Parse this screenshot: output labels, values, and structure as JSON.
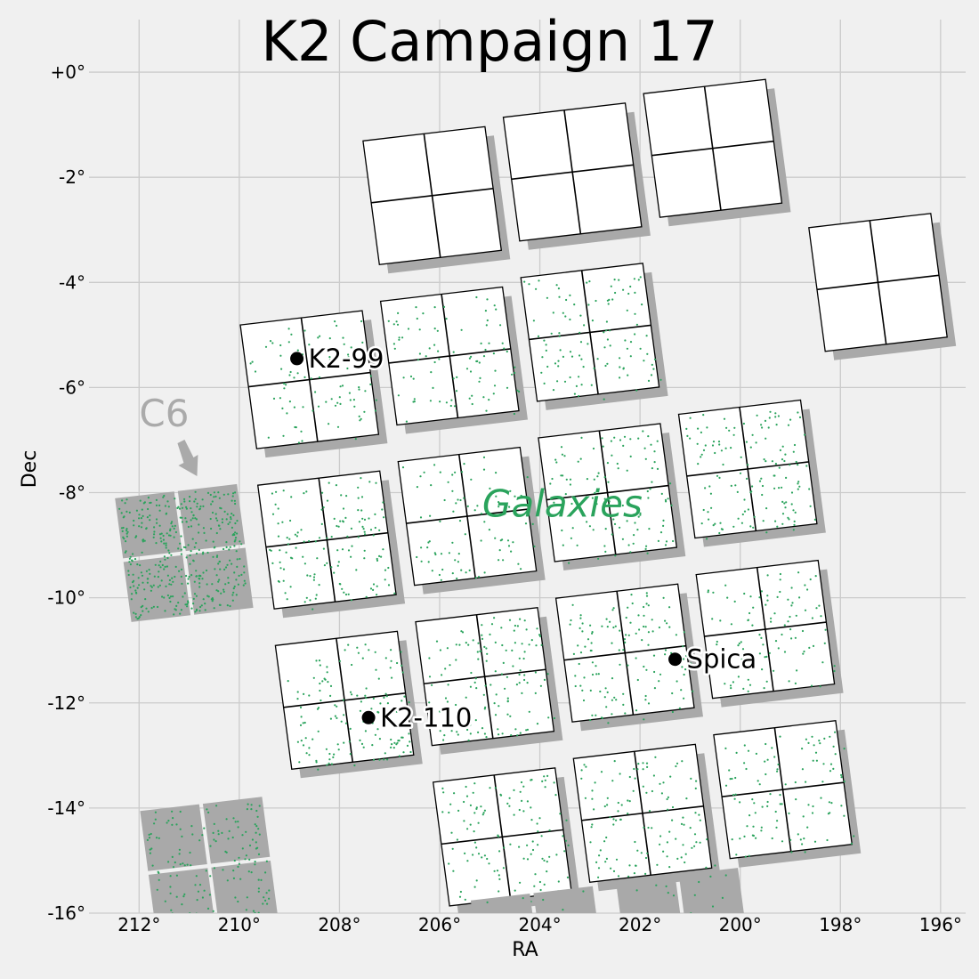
{
  "chart_data": {
    "type": "scatter",
    "title": "K2 Campaign 17",
    "xlabel": "RA",
    "ylabel": "Dec",
    "xlim": [
      213.0,
      195.5
    ],
    "ylim": [
      -16.0,
      1.0
    ],
    "x_ticks": [
      {
        "value": 212,
        "label": "212°"
      },
      {
        "value": 210,
        "label": "210°"
      },
      {
        "value": 208,
        "label": "208°"
      },
      {
        "value": 206,
        "label": "206°"
      },
      {
        "value": 204,
        "label": "204°"
      },
      {
        "value": 202,
        "label": "202°"
      },
      {
        "value": 200,
        "label": "200°"
      },
      {
        "value": 198,
        "label": "198°"
      },
      {
        "value": 196,
        "label": "196°"
      }
    ],
    "y_ticks": [
      {
        "value": 0,
        "label": "+0°"
      },
      {
        "value": -2,
        "label": "-2°"
      },
      {
        "value": -4,
        "label": "-4°"
      },
      {
        "value": -6,
        "label": "-6°"
      },
      {
        "value": -8,
        "label": "-8°"
      },
      {
        "value": -10,
        "label": "-10°"
      },
      {
        "value": -12,
        "label": "-12°"
      },
      {
        "value": -14,
        "label": "-14°"
      },
      {
        "value": -16,
        "label": "-16°"
      }
    ],
    "grid": true,
    "annotations": [
      {
        "name": "K2-99",
        "label": "K2-99",
        "ra": 208.85,
        "dec": -5.45
      },
      {
        "name": "K2-110",
        "label": "K2-110",
        "ra": 207.42,
        "dec": -12.28
      },
      {
        "name": "Spica",
        "label": "Spica",
        "ra": 201.3,
        "dec": -11.17
      }
    ],
    "overlay_text": {
      "c6_label": "C6",
      "c6_label_ra": 211.5,
      "c6_label_dec": -6.5,
      "galaxies_label": "Galaxies",
      "galaxies_label_ra": 203.55,
      "galaxies_label_dec": -8.2
    },
    "modules": [
      {
        "id": "m1",
        "ra": 206.15,
        "dec": -2.35,
        "campaign": "C17",
        "targets": 0
      },
      {
        "id": "m2",
        "ra": 203.35,
        "dec": -1.9,
        "campaign": "C17",
        "targets": 0
      },
      {
        "id": "m3",
        "ra": 200.55,
        "dec": -1.45,
        "campaign": "C17",
        "targets": 0
      },
      {
        "id": "m4",
        "ra": 197.25,
        "dec": -4.0,
        "campaign": "C17",
        "targets": 0
      },
      {
        "id": "m5",
        "ra": 208.6,
        "dec": -5.85,
        "campaign": "C17",
        "targets": 90
      },
      {
        "id": "m6",
        "ra": 205.8,
        "dec": -5.4,
        "campaign": "C17",
        "targets": 90
      },
      {
        "id": "m7",
        "ra": 203.0,
        "dec": -4.95,
        "campaign": "C17",
        "targets": 110
      },
      {
        "id": "m8",
        "ra": 208.25,
        "dec": -8.9,
        "campaign": "C17",
        "targets": 140
      },
      {
        "id": "m9",
        "ra": 205.45,
        "dec": -8.45,
        "campaign": "C17",
        "targets": 90
      },
      {
        "id": "m10",
        "ra": 202.65,
        "dec": -8.0,
        "campaign": "C17",
        "targets": 110
      },
      {
        "id": "m11",
        "ra": 199.85,
        "dec": -7.55,
        "campaign": "C17",
        "targets": 140
      },
      {
        "id": "m12",
        "ra": 207.9,
        "dec": -11.95,
        "campaign": "C17",
        "targets": 140
      },
      {
        "id": "m13",
        "ra": 205.1,
        "dec": -11.5,
        "campaign": "C17",
        "targets": 130
      },
      {
        "id": "m14",
        "ra": 202.3,
        "dec": -11.05,
        "campaign": "C17",
        "targets": 130
      },
      {
        "id": "m15",
        "ra": 199.5,
        "dec": -10.6,
        "campaign": "C17",
        "targets": 100
      },
      {
        "id": "m16",
        "ra": 204.75,
        "dec": -14.55,
        "campaign": "C17",
        "targets": 120
      },
      {
        "id": "m17",
        "ra": 201.95,
        "dec": -14.1,
        "campaign": "C17",
        "targets": 120
      },
      {
        "id": "m18",
        "ra": 199.15,
        "dec": -13.65,
        "campaign": "C17",
        "targets": 110
      },
      {
        "id": "c6a",
        "ra": 211.1,
        "dec": -9.15,
        "campaign": "C6",
        "targets": 420
      },
      {
        "id": "c6b",
        "ra": 210.6,
        "dec": -15.1,
        "campaign": "C6",
        "targets": 170
      },
      {
        "id": "c6c",
        "ra": 204.0,
        "dec": -16.8,
        "campaign": "C6",
        "targets": 40
      },
      {
        "id": "c6d",
        "ra": 201.1,
        "dec": -16.45,
        "campaign": "C6",
        "targets": 50
      }
    ]
  },
  "colors": {
    "background": "#f0f0f0",
    "grid": "#cbcbcb",
    "module_fill": "#ffffff",
    "module_edge": "#000000",
    "shadow_fill": "#a9a9a9",
    "target_dot": "#2aa35c",
    "c6_text": "#aaaaaa",
    "galaxies_text": "#2aa35c",
    "marker": "#000000"
  }
}
